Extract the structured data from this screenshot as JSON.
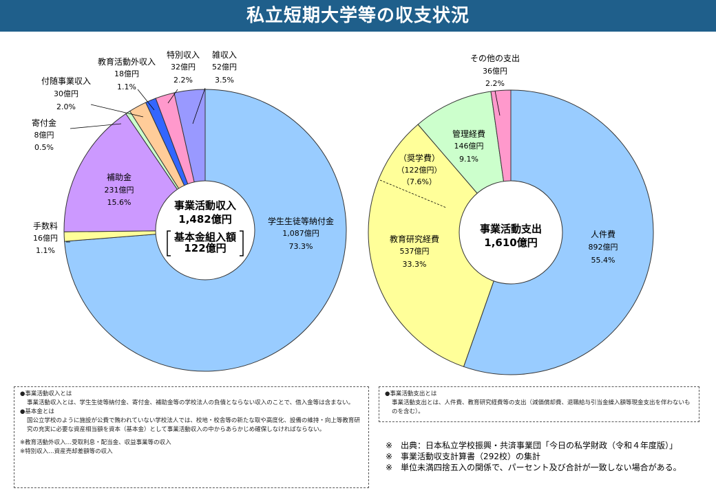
{
  "title": "私立短期大学等の収支状況",
  "colors": {
    "title_bar": "#1f5f8b"
  },
  "chart_data": [
    {
      "type": "pie",
      "variant": "donut",
      "center": {
        "title": "事業活動収入",
        "total": "1,482億円",
        "sub_title": "基本金組入額",
        "sub_value": "122億円"
      },
      "total": 1482,
      "unit": "億円",
      "slices": [
        {
          "name": "学生生徒等納付金",
          "value": 1087,
          "value_label": "1,087億円",
          "pct": "73.3%",
          "color": "#99ccff"
        },
        {
          "name": "手数料",
          "value": 16,
          "value_label": "16億円",
          "pct": "1.1%",
          "color": "#ffff99"
        },
        {
          "name": "補助金",
          "value": 231,
          "value_label": "231億円",
          "pct": "15.6%",
          "color": "#cc99ff"
        },
        {
          "name": "寄付金",
          "value": 8,
          "value_label": "8億円",
          "pct": "0.5%",
          "color": "#ccffcc"
        },
        {
          "name": "付随事業収入",
          "value": 30,
          "value_label": "30億円",
          "pct": "2.0%",
          "color": "#ffcc99"
        },
        {
          "name": "教育活動外収入",
          "value": 18,
          "value_label": "18億円",
          "pct": "1.1%",
          "color": "#3366ff"
        },
        {
          "name": "特別収入",
          "value": 32,
          "value_label": "32億円",
          "pct": "2.2%",
          "color": "#ff99cc"
        },
        {
          "name": "雑収入",
          "value": 52,
          "value_label": "52億円",
          "pct": "3.5%",
          "color": "#9999ff"
        }
      ]
    },
    {
      "type": "pie",
      "variant": "donut",
      "center": {
        "title": "事業活動支出",
        "total": "1,610億円"
      },
      "total": 1610,
      "unit": "億円",
      "slices": [
        {
          "name": "人件費",
          "value": 892,
          "value_label": "892億円",
          "pct": "55.4%",
          "color": "#99ccff"
        },
        {
          "name": "教育研究経費",
          "value": 537,
          "value_label": "537億円",
          "pct": "33.3%",
          "color": "#ffff99",
          "sub": {
            "name": "（奨学費）",
            "value": 122,
            "value_label": "（122億円）",
            "pct": "（7.6%）"
          }
        },
        {
          "name": "管理経費",
          "value": 146,
          "value_label": "146億円",
          "pct": "9.1%",
          "color": "#ccffcc"
        },
        {
          "name": "その他の支出",
          "value": 36,
          "value_label": "36億円",
          "pct": "2.2%",
          "color": "#ff99cc"
        }
      ]
    }
  ],
  "notes_left": {
    "h1": "●事業活動収入とは",
    "p1": "事業活動収入とは、学生生徒等納付金、寄付金、補助金等の学校法人の負債とならない収入のことで、借入金等は含まない。",
    "h2": "●基本金とは",
    "p2": "国公立学校のように施設が公費で賄われていない学校法人では、校地・校舎等の新たな取や高度化、設備の維持・向上等教育研究の充実に必要な資産相当額を資本（基本金）として事業活動収入の中からあらかじめ確保しなければならない。",
    "f1": "※教育活動外収入…受取利息・配当金、収益事業等の収入",
    "f2": "※特別収入…資産売却差額等の収入"
  },
  "notes_right": {
    "h1": "●事業活動支出とは",
    "p1": "事業活動支出とは、人件費、教育研究経費等の支出（減価償却費、退職給与引当金繰入額等現金支出を伴わないものを含む）。"
  },
  "sources": [
    "※　出典：日本私立学校振興・共済事業団「今日の私学財政（令和４年度版）」",
    "※　事業活動収支計算書（292校）の集計",
    "※　単位未満四捨五入の関係で、パーセント及び合計が一致しない場合がある。"
  ]
}
